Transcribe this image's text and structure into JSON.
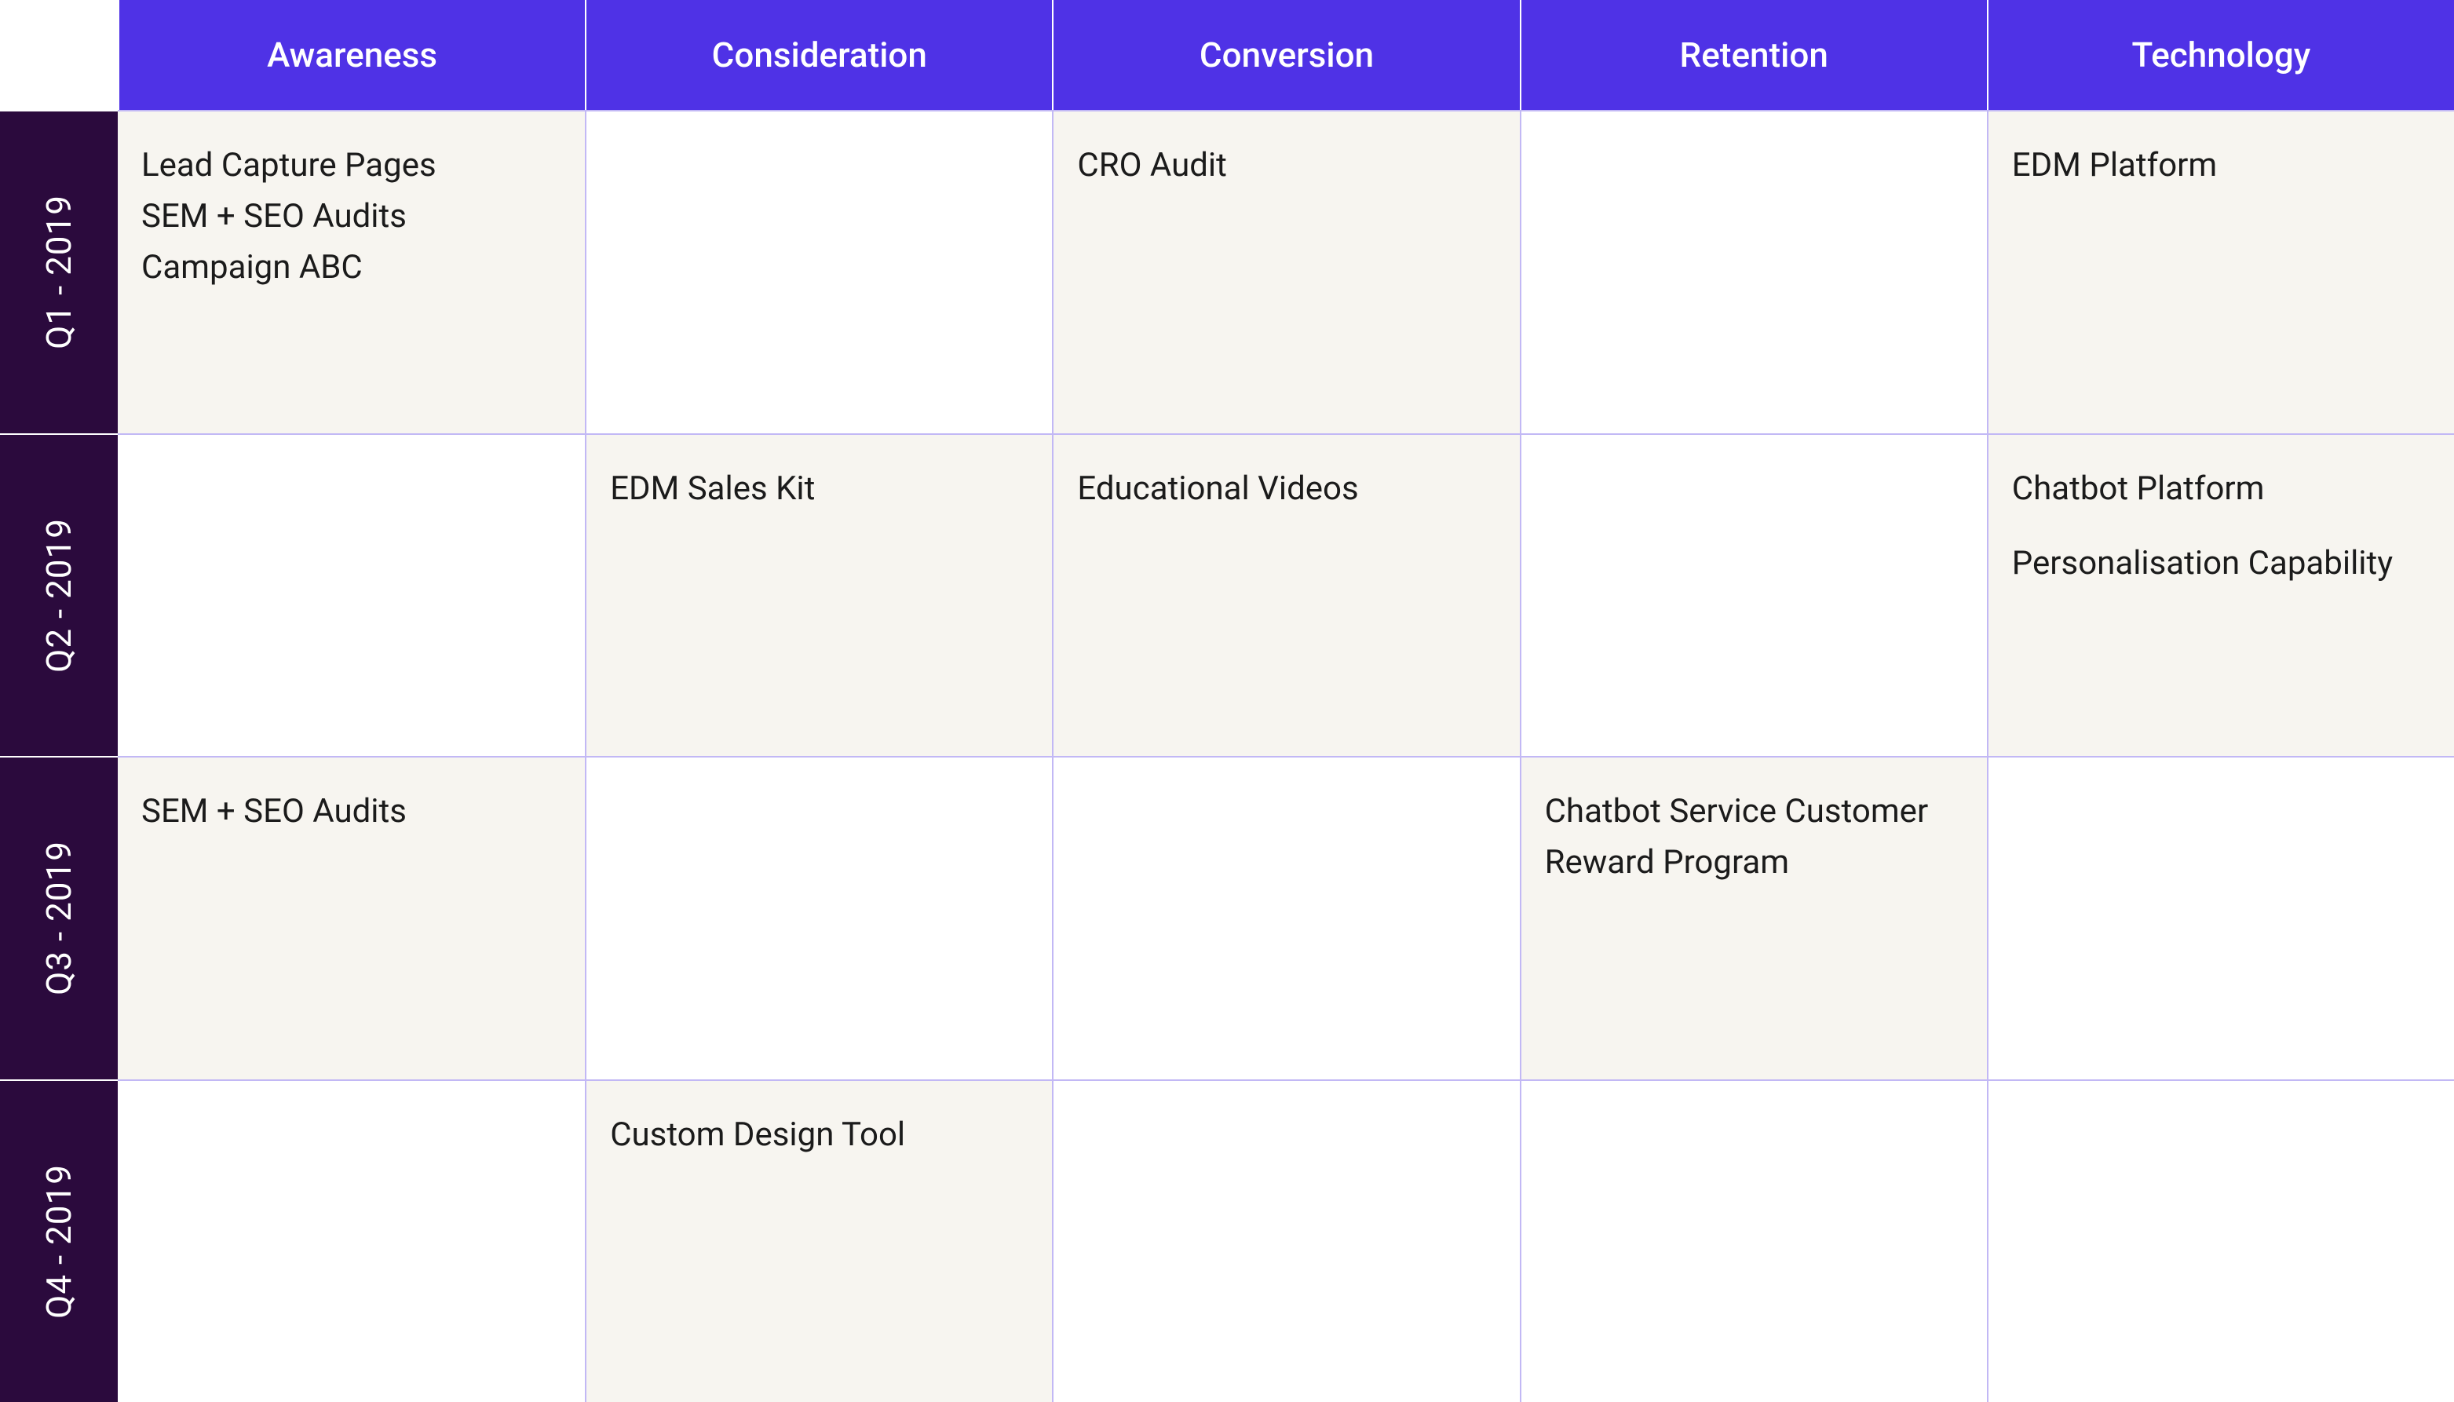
{
  "table": {
    "type": "matrix",
    "colors": {
      "columnHeaderBg": "#4f32e6",
      "columnHeaderText": "#ffffff",
      "rowHeaderBg": "#2b0a3d",
      "rowHeaderText": "#ffffff",
      "cellFilledBg": "#f7f5f0",
      "cellEmptyBg": "#ffffff",
      "cellText": "#1b1b1b",
      "gridBorderOnFilled": "#c2b8f5",
      "gridBorderOnHeader": "#ffffff"
    },
    "columns": [
      {
        "label": "Awareness"
      },
      {
        "label": "Consideration"
      },
      {
        "label": "Conversion"
      },
      {
        "label": "Retention"
      },
      {
        "label": "Technology"
      }
    ],
    "rows": [
      {
        "label": "Q1 - 2019",
        "cells": [
          {
            "items": [
              "Lead Capture Pages",
              "SEM + SEO Audits",
              "Campaign ABC"
            ]
          },
          {
            "items": []
          },
          {
            "items": [
              "CRO Audit"
            ]
          },
          {
            "items": []
          },
          {
            "items": [
              "EDM Platform"
            ]
          }
        ]
      },
      {
        "label": "Q2 - 2019",
        "cells": [
          {
            "items": []
          },
          {
            "items": [
              "EDM Sales Kit"
            ]
          },
          {
            "items": [
              "Educational Videos"
            ]
          },
          {
            "items": []
          },
          {
            "items": [
              "Chatbot Platform",
              "Personalisation Capability"
            ],
            "spaced": true
          }
        ]
      },
      {
        "label": "Q3 - 2019",
        "cells": [
          {
            "items": [
              "SEM + SEO Audits"
            ]
          },
          {
            "items": []
          },
          {
            "items": []
          },
          {
            "items": [
              "Chatbot Service Customer Reward Program"
            ]
          },
          {
            "items": []
          }
        ]
      },
      {
        "label": "Q4 - 2019",
        "cells": [
          {
            "items": []
          },
          {
            "items": [
              "Custom Design Tool"
            ]
          },
          {
            "items": []
          },
          {
            "items": []
          },
          {
            "items": []
          }
        ]
      }
    ]
  }
}
